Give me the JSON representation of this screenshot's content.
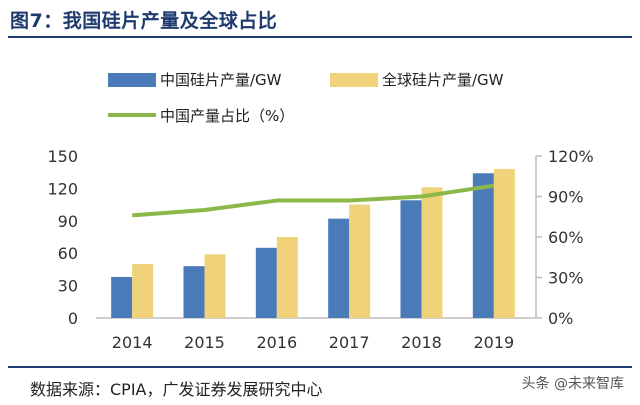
{
  "title": "图7：我国硅片产量及全球占比",
  "source": "数据来源：CPIA，广发证券发展研究中心",
  "watermark": "头条 @未来智库",
  "colors": {
    "china_bar": "#4a7ab8",
    "global_bar": "#f0d27a",
    "share_line": "#8cb84a",
    "title": "#1f3a6e",
    "axis": "#bdbdbd"
  },
  "chart_data": {
    "type": "bar",
    "categories": [
      "2014",
      "2015",
      "2016",
      "2017",
      "2018",
      "2019"
    ],
    "series": [
      {
        "name": "中国硅片产量/GW",
        "type": "bar",
        "axis": "left",
        "values": [
          38,
          48,
          65,
          92,
          109,
          134
        ]
      },
      {
        "name": "全球硅片产量/GW",
        "type": "bar",
        "axis": "left",
        "values": [
          50,
          59,
          75,
          105,
          121,
          138
        ]
      },
      {
        "name": "中国产量占比（%）",
        "type": "line",
        "axis": "right",
        "values": [
          76,
          80,
          87,
          87,
          90,
          98
        ]
      }
    ],
    "ylim": [
      0,
      150
    ],
    "yticks": [
      "0",
      "30",
      "60",
      "90",
      "120",
      "150"
    ],
    "y2lim": [
      0,
      120
    ],
    "y2ticks": [
      "0%",
      "30%",
      "60%",
      "90%",
      "120%"
    ],
    "legend_position": "top-left",
    "grid": false
  }
}
